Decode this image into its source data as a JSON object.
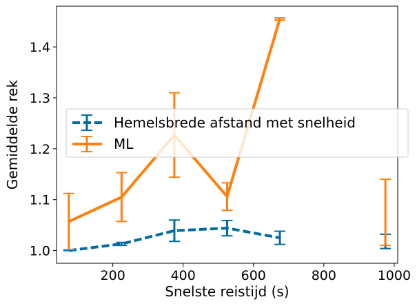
{
  "chart_data": {
    "type": "line",
    "xlabel": "Snelste reistijd (s)",
    "ylabel": "Gemiddelde rek",
    "xlim": [
      40,
      1010
    ],
    "ylim": [
      0.975,
      1.48
    ],
    "xticks": [
      200,
      400,
      600,
      800,
      1000
    ],
    "yticks": [
      1.0,
      1.1,
      1.2,
      1.3,
      1.4
    ],
    "ytick_labels": [
      "1.0",
      "1.1",
      "1.2",
      "1.3",
      "1.4"
    ],
    "grid": false,
    "legend_position": "center-left",
    "series": [
      {
        "name": "Hemelsbrede afstand met snelheid",
        "color": "#006BA4",
        "linestyle": "dashed",
        "points": [
          {
            "x": 75,
            "y": 1.0,
            "err": 0.0
          },
          {
            "x": 225,
            "y": 1.013,
            "err": 0.003
          },
          {
            "x": 375,
            "y": 1.039,
            "err": 0.021
          },
          {
            "x": 525,
            "y": 1.044,
            "err": 0.015
          },
          {
            "x": 675,
            "y": 1.025,
            "err": 0.013
          },
          {
            "x": 975,
            "y": 1.018,
            "err": 0.014
          }
        ]
      },
      {
        "name": "ML",
        "color": "#FF800E",
        "linestyle": "solid",
        "points": [
          {
            "x": 75,
            "y": 1.057,
            "err": 0.055
          },
          {
            "x": 225,
            "y": 1.105,
            "err": 0.048
          },
          {
            "x": 375,
            "y": 1.227,
            "err": 0.083
          },
          {
            "x": 525,
            "y": 1.106,
            "err": 0.027
          },
          {
            "x": 675,
            "y": 1.455,
            "err": 0.002
          },
          {
            "x": 975,
            "y": 1.075,
            "err": 0.065
          }
        ]
      }
    ]
  }
}
